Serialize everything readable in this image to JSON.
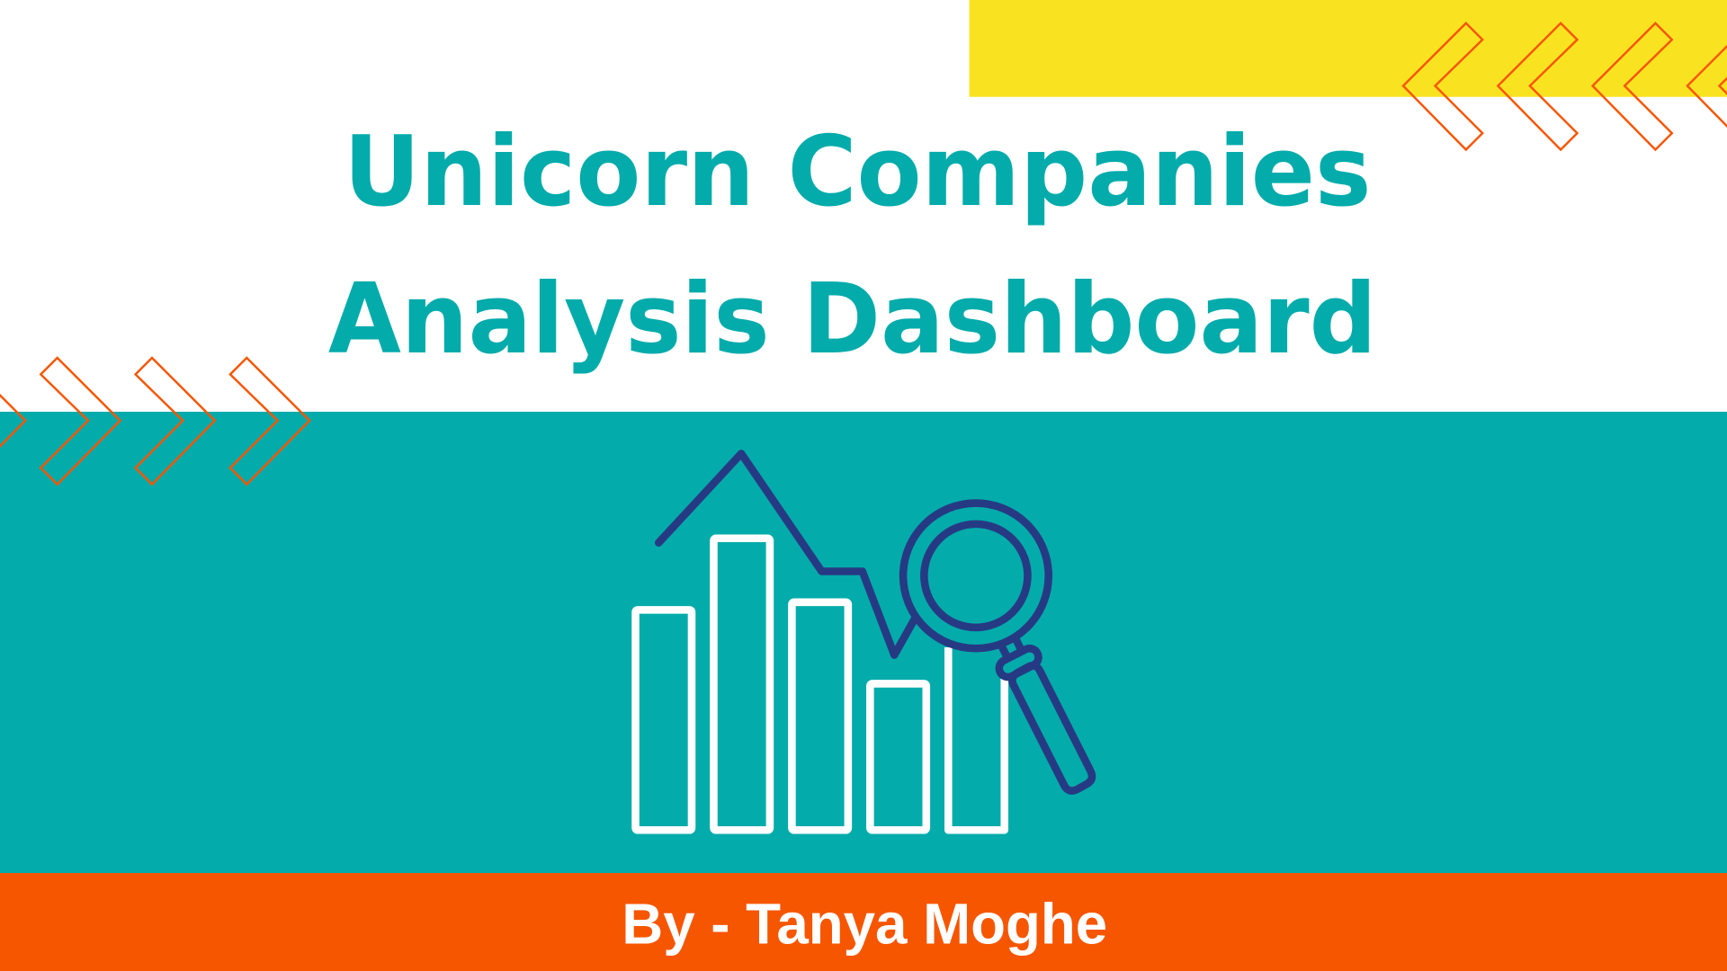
{
  "title": {
    "line1": "Unicorn Companies",
    "line2": "Analysis Dashboard"
  },
  "footer": {
    "author": "By - Tanya Moghe"
  },
  "icons": {
    "decoration_left": "chevron-right-outline",
    "decoration_right": "chevron-left-outline",
    "illustration": "bar-chart-with-magnifying-glass"
  },
  "colors": {
    "teal": "#04ABAB",
    "yellow": "#F9E320",
    "orange": "#F65600",
    "navy": "#263A83",
    "white": "#FFFFFF"
  }
}
